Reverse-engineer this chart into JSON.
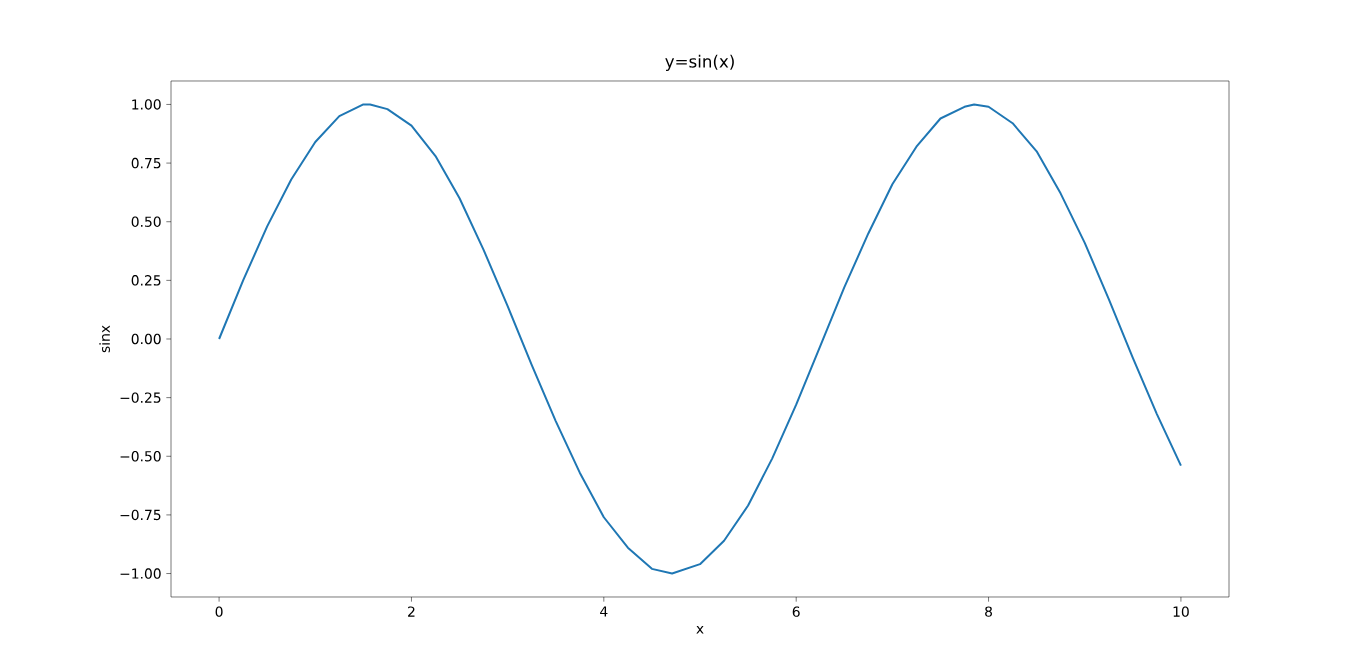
{
  "chart_data": {
    "type": "line",
    "title": "y=sin(x)",
    "xlabel": "x",
    "ylabel": "sinx",
    "x": [
      0,
      0.25,
      0.5,
      0.75,
      1,
      1.25,
      1.5,
      1.57,
      1.75,
      2,
      2.25,
      2.5,
      2.75,
      3,
      3.25,
      3.5,
      3.75,
      4,
      4.25,
      4.5,
      4.71,
      5,
      5.25,
      5.5,
      5.75,
      6,
      6.25,
      6.5,
      6.75,
      7,
      7.25,
      7.5,
      7.75,
      7.85,
      8,
      8.25,
      8.5,
      8.75,
      9,
      9.25,
      9.5,
      9.75,
      10
    ],
    "series": [
      {
        "color": "#1f77b4",
        "values": [
          0,
          0.25,
          0.48,
          0.68,
          0.84,
          0.95,
          1.0,
          1.0,
          0.98,
          0.91,
          0.78,
          0.6,
          0.38,
          0.14,
          -0.11,
          -0.35,
          -0.57,
          -0.76,
          -0.89,
          -0.98,
          -1.0,
          -0.96,
          -0.86,
          -0.71,
          -0.51,
          -0.28,
          -0.03,
          0.22,
          0.45,
          0.66,
          0.82,
          0.94,
          0.99,
          1.0,
          0.99,
          0.92,
          0.8,
          0.62,
          0.41,
          0.17,
          -0.08,
          -0.32,
          -0.54
        ]
      }
    ],
    "xlim": [
      -0.5,
      10.5
    ],
    "ylim": [
      -1.1,
      1.1
    ],
    "xticks": [
      0,
      2,
      4,
      6,
      8,
      10
    ],
    "yticks": [
      {
        "value": -1,
        "label": "−1.00"
      },
      {
        "value": -0.75,
        "label": "−0.75"
      },
      {
        "value": -0.5,
        "label": "−0.50"
      },
      {
        "value": -0.25,
        "label": "−0.25"
      },
      {
        "value": 0,
        "label": "0.00"
      },
      {
        "value": 0.25,
        "label": "0.25"
      },
      {
        "value": 0.5,
        "label": "0.50"
      },
      {
        "value": 0.75,
        "label": "0.75"
      },
      {
        "value": 1,
        "label": "1.00"
      }
    ],
    "grid": false
  }
}
